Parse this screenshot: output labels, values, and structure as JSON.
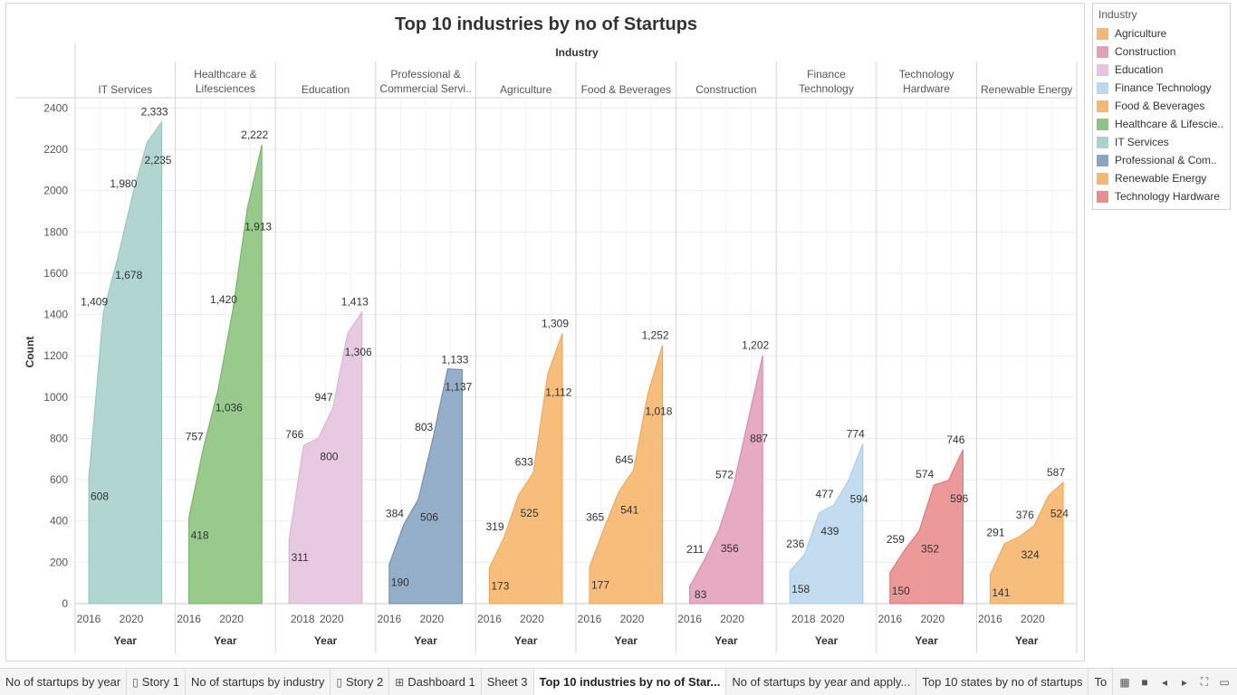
{
  "chart_data": {
    "type": "area",
    "title": "Top 10 industries by no of Startups",
    "column_header": "Industry",
    "ylabel": "Count",
    "xlabel": "Year",
    "ylim": [
      0,
      2450
    ],
    "y_ticks": [
      0,
      200,
      400,
      600,
      800,
      1000,
      1200,
      1400,
      1600,
      1800,
      2000,
      2200,
      2400
    ],
    "panels": [
      {
        "name": "IT Services",
        "header": [
          "IT Services"
        ],
        "color": "#a9d2cc",
        "line": "#8fc4bc",
        "x_ticks": [
          "2016",
          "2020"
        ],
        "points": [
          {
            "x": 2015,
            "y": 608
          },
          {
            "x": 2016,
            "y": 1409
          },
          {
            "x": 2017,
            "y": 1678
          },
          {
            "x": 2018,
            "y": 1980
          },
          {
            "x": 2019,
            "y": 2235
          },
          {
            "x": 2020,
            "y": 2333
          }
        ]
      },
      {
        "name": "Healthcare & Lifesciences",
        "header": [
          "Healthcare &",
          "Lifesciences"
        ],
        "color": "#8dc47f",
        "line": "#6fb15f",
        "x_ticks": [
          "2016",
          "2020"
        ],
        "points": [
          {
            "x": 2015,
            "y": 418
          },
          {
            "x": 2016,
            "y": 757
          },
          {
            "x": 2017,
            "y": 1036
          },
          {
            "x": 2018,
            "y": 1420
          },
          {
            "x": 2019,
            "y": 1913
          },
          {
            "x": 2020,
            "y": 2222
          }
        ]
      },
      {
        "name": "Education",
        "header": [
          "Education"
        ],
        "color": "#e4c4df",
        "line": "#d7aed0",
        "x_ticks": [
          "2018",
          "2020"
        ],
        "points": [
          {
            "x": 2015,
            "y": 311
          },
          {
            "x": 2016,
            "y": 766
          },
          {
            "x": 2017,
            "y": 800
          },
          {
            "x": 2018,
            "y": 947
          },
          {
            "x": 2019,
            "y": 1306
          },
          {
            "x": 2020,
            "y": 1413
          }
        ]
      },
      {
        "name": "Professional & Commercial Services",
        "header": [
          "Professional &",
          "Commercial Servi.."
        ],
        "color": "#8aa5c4",
        "line": "#6787b0",
        "x_ticks": [
          "2016",
          "2020"
        ],
        "points": [
          {
            "x": 2015,
            "y": 190
          },
          {
            "x": 2016,
            "y": 384
          },
          {
            "x": 2017,
            "y": 506
          },
          {
            "x": 2018,
            "y": 803
          },
          {
            "x": 2019,
            "y": 1137
          },
          {
            "x": 2020,
            "y": 1133
          }
        ]
      },
      {
        "name": "Agriculture",
        "header": [
          "Agriculture"
        ],
        "color": "#f5b66d",
        "line": "#f0a24a",
        "x_ticks": [
          "2016",
          "2020"
        ],
        "points": [
          {
            "x": 2015,
            "y": 173
          },
          {
            "x": 2016,
            "y": 319
          },
          {
            "x": 2017,
            "y": 525
          },
          {
            "x": 2018,
            "y": 633
          },
          {
            "x": 2019,
            "y": 1112
          },
          {
            "x": 2020,
            "y": 1309
          }
        ]
      },
      {
        "name": "Food & Beverages",
        "header": [
          "Food & Beverages"
        ],
        "color": "#f5b66d",
        "line": "#f0a24a",
        "x_ticks": [
          "2016",
          "2020"
        ],
        "points": [
          {
            "x": 2015,
            "y": 177
          },
          {
            "x": 2016,
            "y": 365
          },
          {
            "x": 2017,
            "y": 541
          },
          {
            "x": 2018,
            "y": 645
          },
          {
            "x": 2019,
            "y": 1018
          },
          {
            "x": 2020,
            "y": 1252
          }
        ]
      },
      {
        "name": "Construction",
        "header": [
          "Construction"
        ],
        "color": "#e3a1bb",
        "line": "#d9849f",
        "x_ticks": [
          "2016",
          "2020"
        ],
        "points": [
          {
            "x": 2015,
            "y": 83
          },
          {
            "x": 2016,
            "y": 211
          },
          {
            "x": 2017,
            "y": 356
          },
          {
            "x": 2018,
            "y": 572
          },
          {
            "x": 2019,
            "y": 887
          },
          {
            "x": 2020,
            "y": 1202
          }
        ]
      },
      {
        "name": "Finance Technology",
        "header": [
          "Finance",
          "Technology"
        ],
        "color": "#bcd8ee",
        "line": "#a4c9e6",
        "x_ticks": [
          "2018",
          "2020"
        ],
        "points": [
          {
            "x": 2015,
            "y": 158
          },
          {
            "x": 2016,
            "y": 236
          },
          {
            "x": 2017,
            "y": 439
          },
          {
            "x": 2018,
            "y": 477
          },
          {
            "x": 2019,
            "y": 594
          },
          {
            "x": 2020,
            "y": 774
          }
        ]
      },
      {
        "name": "Technology Hardware",
        "header": [
          "Technology",
          "Hardware"
        ],
        "color": "#ea8e8e",
        "line": "#e06a6a",
        "x_ticks": [
          "2016",
          "2020"
        ],
        "points": [
          {
            "x": 2015,
            "y": 150
          },
          {
            "x": 2016,
            "y": 259
          },
          {
            "x": 2017,
            "y": 352
          },
          {
            "x": 2018,
            "y": 574
          },
          {
            "x": 2019,
            "y": 596
          },
          {
            "x": 2020,
            "y": 746
          }
        ]
      },
      {
        "name": "Renewable Energy",
        "header": [
          "Renewable Energy"
        ],
        "color": "#f5b66d",
        "line": "#f0a24a",
        "x_ticks": [
          "2016",
          "2020"
        ],
        "points": [
          {
            "x": 2015,
            "y": 141
          },
          {
            "x": 2016,
            "y": 291
          },
          {
            "x": 2017,
            "y": 324
          },
          {
            "x": 2018,
            "y": 376
          },
          {
            "x": 2019,
            "y": 524
          },
          {
            "x": 2020,
            "y": 587
          }
        ]
      }
    ],
    "data_labels": [
      [
        "608",
        "1,409",
        "1,678",
        "1,980",
        "2,235",
        "2,333"
      ],
      [
        "418",
        "757",
        "1,036",
        "1,420",
        "1,913",
        "2,222"
      ],
      [
        "311",
        "766",
        "800",
        "947",
        "1,306",
        "1,413"
      ],
      [
        "190",
        "384",
        "506",
        "803",
        "1,137",
        "1,133"
      ],
      [
        "173",
        "319",
        "525",
        "633",
        "1,112",
        "1,309"
      ],
      [
        "177",
        "365",
        "541",
        "645",
        "1,018",
        "1,252"
      ],
      [
        "83",
        "211",
        "356",
        "572",
        "887",
        "1,202"
      ],
      [
        "158",
        "236",
        "439",
        "477",
        "594",
        "774"
      ],
      [
        "150",
        "259",
        "352",
        "574",
        "596",
        "746"
      ],
      [
        "141",
        "291",
        "324",
        "376",
        "524",
        "587"
      ]
    ]
  },
  "legend": {
    "title": "Industry",
    "items": [
      {
        "label": "Agriculture",
        "color": "#f5b66d"
      },
      {
        "label": "Construction",
        "color": "#e3a1bb"
      },
      {
        "label": "Education",
        "color": "#e4c4df"
      },
      {
        "label": "Finance Technology",
        "color": "#bcd8ee"
      },
      {
        "label": "Food & Beverages",
        "color": "#f5b66d"
      },
      {
        "label": "Healthcare & Lifescie..",
        "color": "#8dc47f"
      },
      {
        "label": "IT Services",
        "color": "#a9d2cc"
      },
      {
        "label": "Professional & Com..",
        "color": "#8aa5c4"
      },
      {
        "label": "Renewable Energy",
        "color": "#f5b66d"
      },
      {
        "label": "Technology Hardware",
        "color": "#ea8e8e"
      }
    ]
  },
  "tabs": [
    {
      "label": "No of startups by year",
      "icon": ""
    },
    {
      "label": "Story 1",
      "icon": "story-icon"
    },
    {
      "label": "No of startups by industry",
      "icon": ""
    },
    {
      "label": "Story 2",
      "icon": "story-icon"
    },
    {
      "label": "Dashboard 1",
      "icon": "dashboard-icon"
    },
    {
      "label": "Sheet 3",
      "icon": ""
    },
    {
      "label": "Top 10 industries by no of Star...",
      "icon": "",
      "active": true
    },
    {
      "label": "No of startups by year and apply...",
      "icon": ""
    },
    {
      "label": "Top 10 states by no of startups",
      "icon": ""
    },
    {
      "label": "To",
      "icon": ""
    }
  ],
  "nav_icons": [
    "grid-view-icon",
    "filmstrip-icon",
    "previous-sheet-icon",
    "next-sheet-icon",
    "fullscreen-icon",
    "presentation-icon"
  ]
}
